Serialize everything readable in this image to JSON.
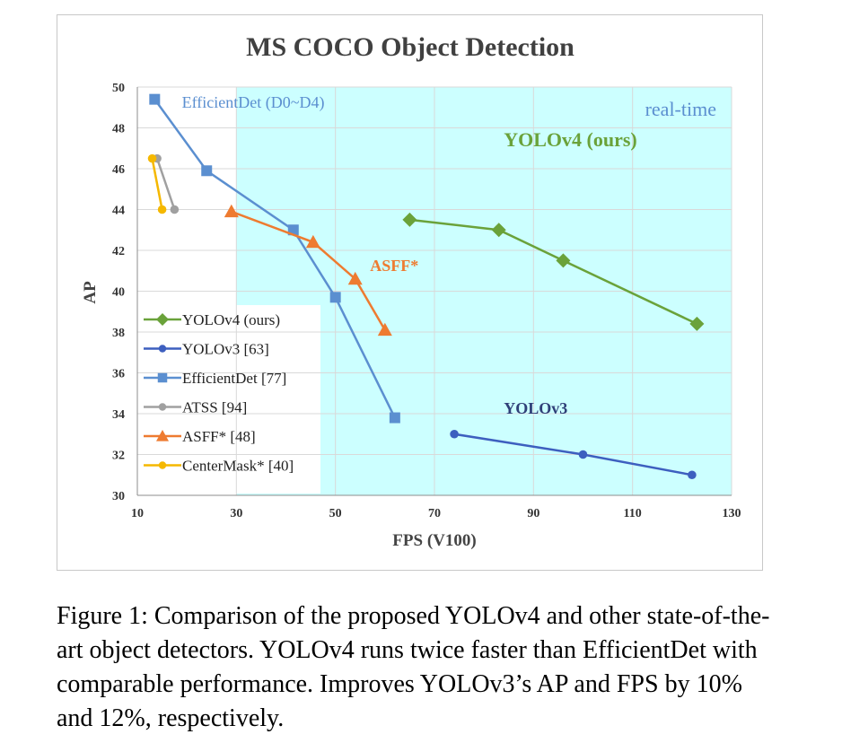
{
  "chart_data": {
    "type": "line",
    "title": "MS COCO Object Detection",
    "xlabel": "FPS (V100)",
    "ylabel": "AP",
    "xlim": [
      10,
      130
    ],
    "ylim": [
      30,
      50
    ],
    "xticks": [
      10,
      30,
      50,
      70,
      90,
      110,
      130
    ],
    "yticks": [
      30,
      32,
      34,
      36,
      38,
      40,
      42,
      44,
      46,
      48,
      50
    ],
    "grid": true,
    "legend_position": "bottom-left",
    "region": {
      "label": "real-time",
      "x_from": 30,
      "color": "#ccffff"
    },
    "series": [
      {
        "name": "YOLOv4 (ours)",
        "color": "#6aa23a",
        "marker": "diamond",
        "x": [
          65,
          83,
          96,
          123
        ],
        "y": [
          43.5,
          43.0,
          41.5,
          38.4
        ],
        "annotation": "YOLOv4 (ours)",
        "annotation_at": [
          84,
          47.1
        ]
      },
      {
        "name": "YOLOv3 [63]",
        "color": "#3d5fbf",
        "marker": "circle",
        "x": [
          74,
          100,
          122
        ],
        "y": [
          33.0,
          32.0,
          31.0
        ],
        "annotation": "YOLOv3",
        "annotation_at": [
          84,
          34
        ]
      },
      {
        "name": "EfficientDet [77]",
        "color": "#5b8fd0",
        "marker": "square",
        "x": [
          13.5,
          24,
          41.5,
          50,
          62
        ],
        "y": [
          49.4,
          45.9,
          43.0,
          39.7,
          33.8
        ],
        "annotation": "EfficientDet (D0~D4)",
        "annotation_at": [
          19,
          49
        ]
      },
      {
        "name": "ATSS [94]",
        "color": "#a0a0a0",
        "marker": "circle",
        "x": [
          14,
          17.5
        ],
        "y": [
          46.5,
          44.0
        ]
      },
      {
        "name": "ASFF* [48]",
        "color": "#ee7b30",
        "marker": "triangle",
        "x": [
          29,
          45.5,
          54,
          60
        ],
        "y": [
          43.9,
          42.4,
          40.6,
          38.1
        ],
        "annotation": "ASFF*",
        "annotation_at": [
          57,
          41
        ]
      },
      {
        "name": "CenterMask* [40]",
        "color": "#f5b800",
        "marker": "circle",
        "x": [
          13,
          15
        ],
        "y": [
          46.5,
          44.0
        ]
      }
    ]
  },
  "caption": "Figure 1: Comparison of the proposed YOLOv4 and other state-of-the-art object detectors. YOLOv4 runs twice faster than EfficientDet with comparable performance. Improves YOLOv3’s AP and FPS by 10% and 12%, respectively."
}
